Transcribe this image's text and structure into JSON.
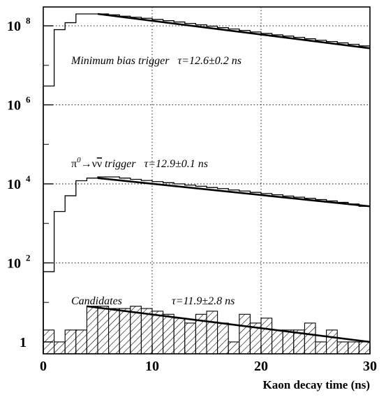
{
  "chart_data": {
    "type": "histogram",
    "xlabel": "Kaon decay time (ns)",
    "x_ticks": [
      "0",
      "10",
      "20",
      "30"
    ],
    "xlim": [
      0,
      30
    ],
    "y_scale": "log",
    "ylim": [
      0.5,
      300000000
    ],
    "y_ticks": [
      {
        "value": 1,
        "base": "1",
        "exp": ""
      },
      {
        "value": 100,
        "base": "10",
        "exp": "2"
      },
      {
        "value": 10000,
        "base": "10",
        "exp": "4"
      },
      {
        "value": 1000000,
        "base": "10",
        "exp": "6"
      },
      {
        "value": 100000000,
        "base": "10",
        "exp": "8"
      }
    ],
    "grid": true,
    "bin_width_ns": 1,
    "series": [
      {
        "name": "Minimum bias trigger",
        "label": "Minimum bias trigger   τ=12.6±0.2 ns",
        "tau_ns": "12.6±0.2",
        "style": "step",
        "values": [
          3000000,
          80000000,
          120000000,
          200000000,
          200000000,
          200000000,
          190000000,
          175000000,
          165000000,
          155000000,
          145000000,
          135000000,
          125000000,
          115000000,
          106000000,
          98000000,
          90000000,
          83000000,
          76000000,
          70000000,
          64000000,
          59000000,
          55000000,
          51000000,
          47000000,
          43000000,
          40000000,
          37000000,
          34000000,
          31000000
        ],
        "fit": {
          "x": [
            5,
            30
          ],
          "y": [
            200000000,
            27000000
          ]
        }
      },
      {
        "name": "π⁰→νν̄ trigger",
        "label": "trigger   τ=12.9±0.1 ns",
        "label_parts": {
          "pi0": "π",
          "pi0_sup": "0",
          "arrow": "→ν",
          "nubar": "ν",
          "rest": " trigger   τ=12.9±0.1 ns"
        },
        "tau_ns": "12.9±0.1",
        "style": "step",
        "values": [
          60,
          2000,
          5000,
          12000,
          14000,
          15000,
          15000,
          14000,
          13000,
          12200,
          11400,
          10700,
          10000,
          9300,
          8700,
          8100,
          7600,
          7000,
          6600,
          6100,
          5700,
          5300,
          4900,
          4600,
          4300,
          4000,
          3700,
          3400,
          3100,
          2700
        ],
        "fit": {
          "x": [
            5,
            30
          ],
          "y": [
            14000,
            2700
          ]
        }
      },
      {
        "name": "Candidates",
        "label": "Candidates",
        "fit_label": "τ=11.9±2.8 ns",
        "tau_ns": "11.9±2.8",
        "style": "hatched",
        "values": [
          2,
          1,
          2,
          2,
          8,
          8,
          7,
          7,
          8,
          7,
          6,
          5,
          4,
          3,
          5,
          6,
          3,
          1,
          5,
          3,
          4,
          2,
          2,
          2,
          3,
          1,
          2,
          1,
          1,
          1
        ],
        "fit": {
          "x": [
            4,
            30
          ],
          "y": [
            8,
            1
          ]
        }
      }
    ]
  }
}
